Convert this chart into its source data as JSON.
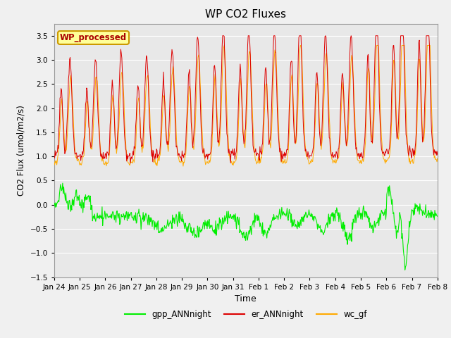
{
  "title": "WP CO2 Fluxes",
  "xlabel": "Time",
  "ylabel": "CO2 Flux (umol/m2/s)",
  "ylim": [
    -1.5,
    3.75
  ],
  "yticks": [
    -1.5,
    -1.0,
    -0.5,
    0.0,
    0.5,
    1.0,
    1.5,
    2.0,
    2.5,
    3.0,
    3.5
  ],
  "bg_color": "#e8e8e8",
  "grid_color": "#ffffff",
  "line_green": "#00ee00",
  "line_red": "#dd0000",
  "line_orange": "#ffaa00",
  "legend_label": "WP_processed",
  "legend_box_color": "#ffff99",
  "legend_box_edge": "#cc9900",
  "legend_text_color": "#aa0000",
  "xtick_labels": [
    "Jan 24",
    "Jan 25",
    "Jan 26",
    "Jan 27",
    "Jan 28",
    "Jan 29",
    "Jan 30",
    "Jan 31",
    "Feb 1",
    "Feb 2",
    "Feb 3",
    "Feb 4",
    "Feb 5",
    "Feb 6",
    "Feb 7",
    "Feb 8"
  ],
  "n_points": 720,
  "n_days": 15
}
